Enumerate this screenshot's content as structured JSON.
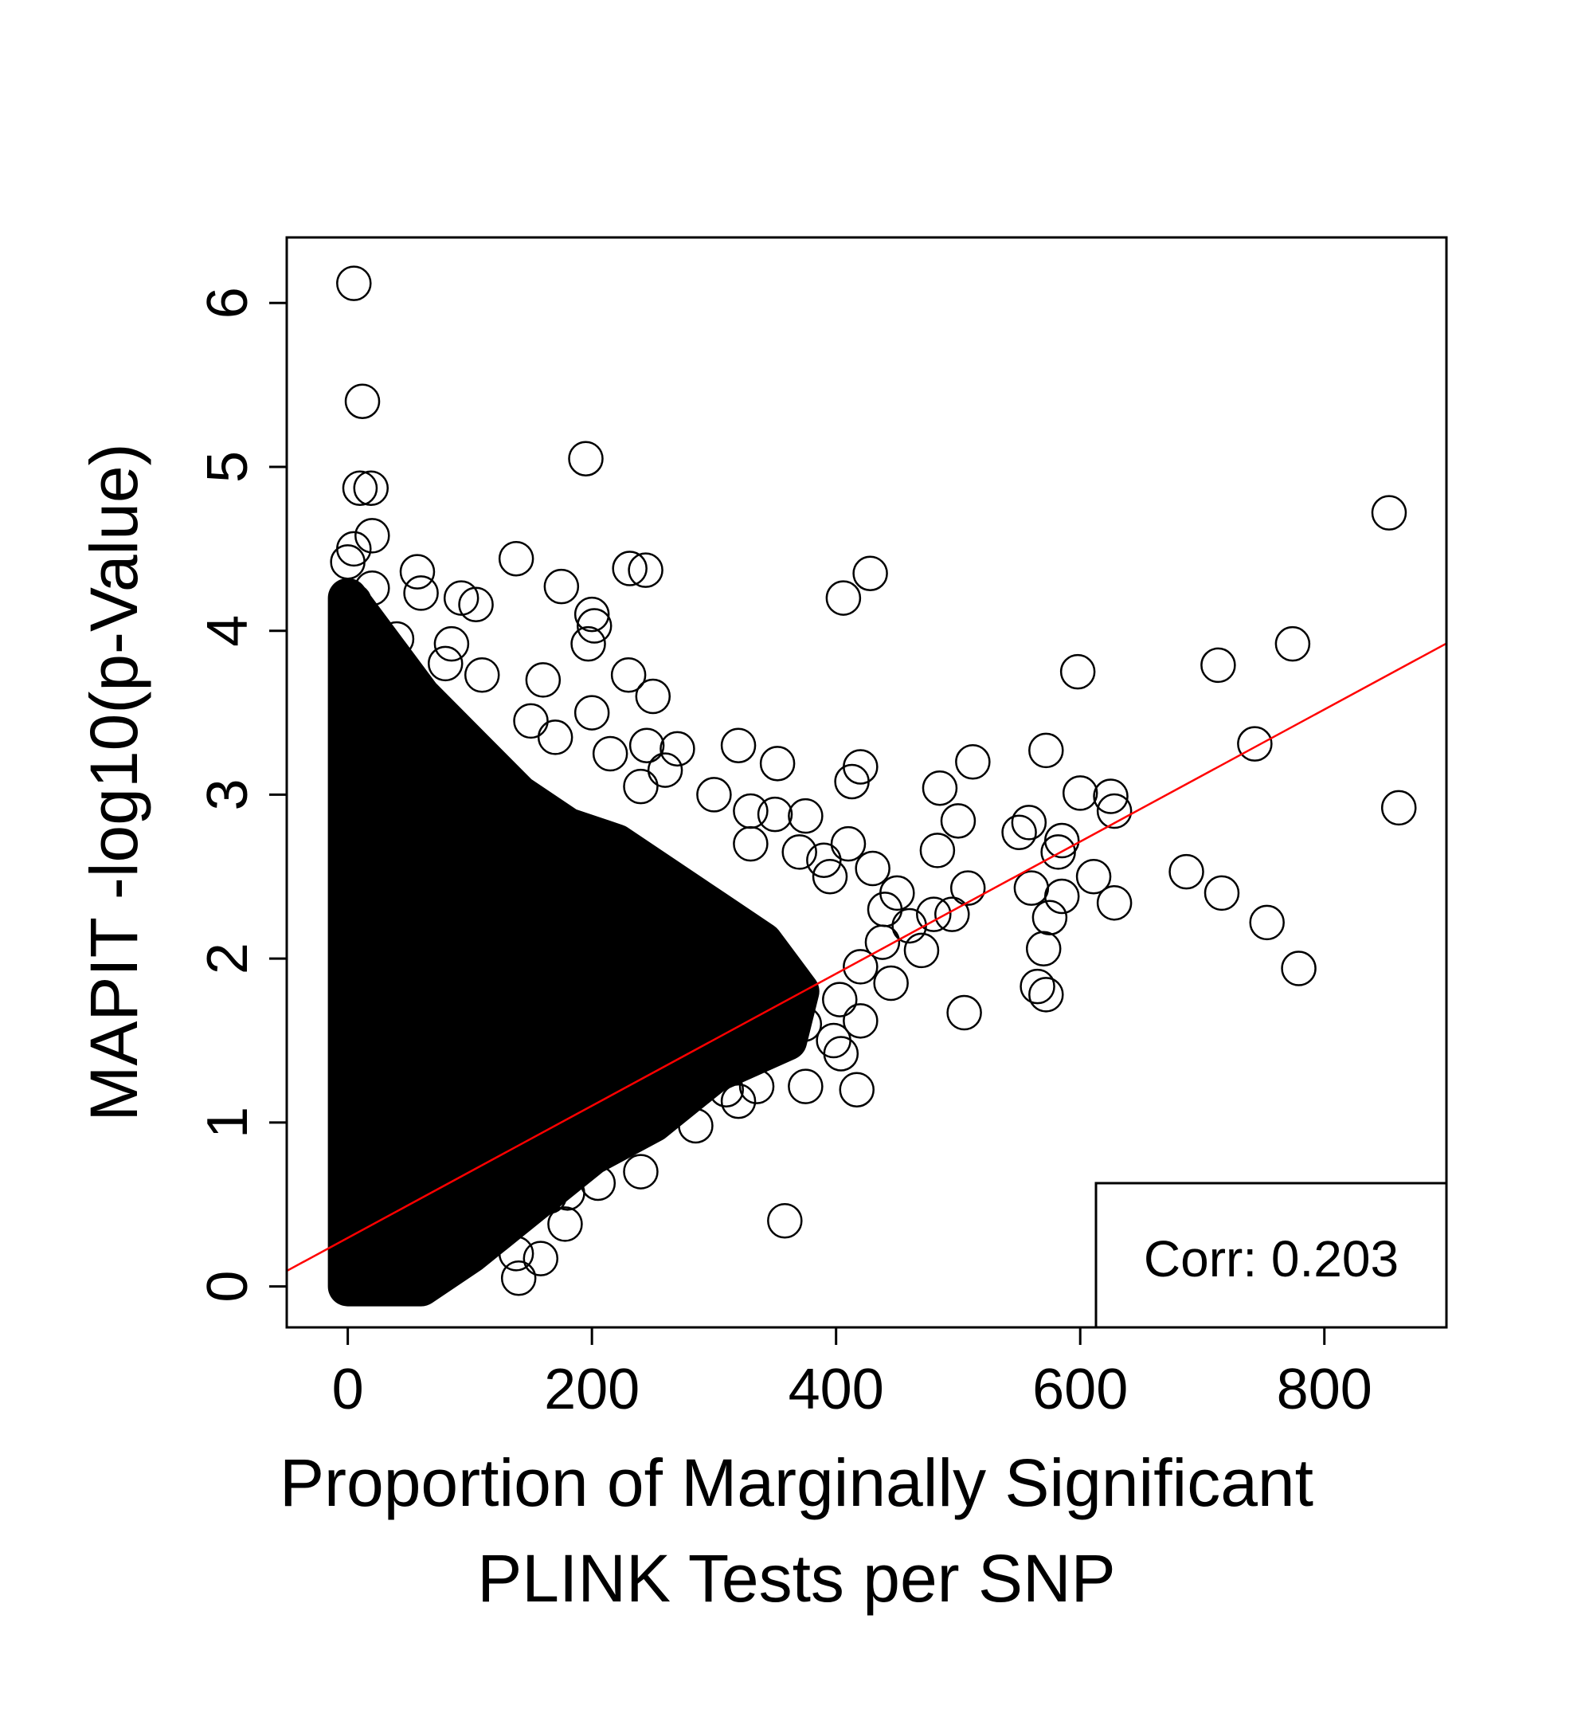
{
  "chart_data": {
    "type": "scatter",
    "title": "",
    "xlabel_lines": [
      "Proportion of Marginally Significant",
      "PLINK Tests per SNP"
    ],
    "ylabel": "MAPIT -log10(p-Value)",
    "xlim": [
      -50,
      900
    ],
    "ylim": [
      -0.25,
      6.4
    ],
    "x_ticks": [
      0,
      200,
      400,
      600,
      800
    ],
    "y_ticks": [
      0,
      1,
      2,
      3,
      4,
      5,
      6
    ],
    "grid": false,
    "legend_position": "bottom-right",
    "legend_text": "Corr: 0.203",
    "point_color": "#000000",
    "dense_core": {
      "description_values": [
        [
          0,
          0
        ],
        [
          0,
          4.2
        ],
        [
          10,
          4.1
        ],
        [
          30,
          3.9
        ],
        [
          60,
          3.6
        ],
        [
          100,
          3.3
        ],
        [
          140,
          3.0
        ],
        [
          180,
          2.8
        ],
        [
          220,
          2.7
        ],
        [
          260,
          2.5
        ],
        [
          300,
          2.3
        ],
        [
          340,
          2.1
        ],
        [
          370,
          1.8
        ],
        [
          360,
          1.5
        ],
        [
          300,
          1.3
        ],
        [
          250,
          1.0
        ],
        [
          200,
          0.8
        ],
        [
          150,
          0.5
        ],
        [
          100,
          0.2
        ],
        [
          60,
          0
        ],
        [
          0,
          0
        ]
      ]
    },
    "points": [
      {
        "x": 5,
        "y": 6.12
      },
      {
        "x": 12,
        "y": 5.4
      },
      {
        "x": 195,
        "y": 5.05
      },
      {
        "x": 10,
        "y": 4.87
      },
      {
        "x": 19,
        "y": 4.87
      },
      {
        "x": 20,
        "y": 4.58
      },
      {
        "x": 5,
        "y": 4.5
      },
      {
        "x": 0,
        "y": 4.42
      },
      {
        "x": 138,
        "y": 4.44
      },
      {
        "x": 231,
        "y": 4.38
      },
      {
        "x": 244,
        "y": 4.37
      },
      {
        "x": 57,
        "y": 4.36
      },
      {
        "x": 60,
        "y": 4.23
      },
      {
        "x": 20,
        "y": 4.26
      },
      {
        "x": 93,
        "y": 4.2
      },
      {
        "x": 105,
        "y": 4.16
      },
      {
        "x": 175,
        "y": 4.27
      },
      {
        "x": 200,
        "y": 4.1
      },
      {
        "x": 202,
        "y": 4.03
      },
      {
        "x": 197,
        "y": 3.92
      },
      {
        "x": 5,
        "y": 4.18
      },
      {
        "x": 10,
        "y": 4.05
      },
      {
        "x": 40,
        "y": 3.95
      },
      {
        "x": 85,
        "y": 3.92
      },
      {
        "x": 80,
        "y": 3.8
      },
      {
        "x": 110,
        "y": 3.73
      },
      {
        "x": 160,
        "y": 3.7
      },
      {
        "x": 230,
        "y": 3.73
      },
      {
        "x": 250,
        "y": 3.6
      },
      {
        "x": 200,
        "y": 3.5
      },
      {
        "x": 150,
        "y": 3.45
      },
      {
        "x": 170,
        "y": 3.35
      },
      {
        "x": 215,
        "y": 3.25
      },
      {
        "x": 245,
        "y": 3.3
      },
      {
        "x": 270,
        "y": 3.28
      },
      {
        "x": 320,
        "y": 3.3
      },
      {
        "x": 352,
        "y": 3.19
      },
      {
        "x": 260,
        "y": 3.15
      },
      {
        "x": 240,
        "y": 3.05
      },
      {
        "x": 300,
        "y": 3.0
      },
      {
        "x": 330,
        "y": 2.9
      },
      {
        "x": 350,
        "y": 2.88
      },
      {
        "x": 375,
        "y": 2.87
      },
      {
        "x": 370,
        "y": 2.65
      },
      {
        "x": 330,
        "y": 2.7
      },
      {
        "x": 390,
        "y": 2.6
      },
      {
        "x": 395,
        "y": 2.5
      },
      {
        "x": 410,
        "y": 2.7
      },
      {
        "x": 420,
        "y": 3.17
      },
      {
        "x": 413,
        "y": 3.08
      },
      {
        "x": 406,
        "y": 4.2
      },
      {
        "x": 428,
        "y": 4.35
      },
      {
        "x": 430,
        "y": 2.55
      },
      {
        "x": 440,
        "y": 2.3
      },
      {
        "x": 450,
        "y": 2.4
      },
      {
        "x": 460,
        "y": 2.2
      },
      {
        "x": 470,
        "y": 2.05
      },
      {
        "x": 480,
        "y": 2.27
      },
      {
        "x": 438,
        "y": 2.1
      },
      {
        "x": 445,
        "y": 1.85
      },
      {
        "x": 420,
        "y": 1.95
      },
      {
        "x": 403,
        "y": 1.75
      },
      {
        "x": 398,
        "y": 1.5
      },
      {
        "x": 404,
        "y": 1.42
      },
      {
        "x": 420,
        "y": 1.62
      },
      {
        "x": 417,
        "y": 1.2
      },
      {
        "x": 375,
        "y": 1.22
      },
      {
        "x": 374,
        "y": 1.6
      },
      {
        "x": 355,
        "y": 1.5
      },
      {
        "x": 330,
        "y": 1.55
      },
      {
        "x": 310,
        "y": 1.2
      },
      {
        "x": 320,
        "y": 1.13
      },
      {
        "x": 335,
        "y": 1.22
      },
      {
        "x": 285,
        "y": 0.98
      },
      {
        "x": 240,
        "y": 0.7
      },
      {
        "x": 205,
        "y": 0.63
      },
      {
        "x": 180,
        "y": 0.57
      },
      {
        "x": 165,
        "y": 0.55
      },
      {
        "x": 178,
        "y": 0.38
      },
      {
        "x": 140,
        "y": 0.05
      },
      {
        "x": 158,
        "y": 0.17
      },
      {
        "x": 138,
        "y": 0.2
      },
      {
        "x": 358,
        "y": 0.4
      },
      {
        "x": 485,
        "y": 3.04
      },
      {
        "x": 500,
        "y": 2.84
      },
      {
        "x": 512,
        "y": 3.2
      },
      {
        "x": 508,
        "y": 2.43
      },
      {
        "x": 483,
        "y": 2.66
      },
      {
        "x": 495,
        "y": 2.27
      },
      {
        "x": 505,
        "y": 1.67
      },
      {
        "x": 550,
        "y": 2.77
      },
      {
        "x": 558,
        "y": 2.83
      },
      {
        "x": 572,
        "y": 3.27
      },
      {
        "x": 598,
        "y": 3.75
      },
      {
        "x": 585,
        "y": 2.72
      },
      {
        "x": 582,
        "y": 2.65
      },
      {
        "x": 600,
        "y": 3.01
      },
      {
        "x": 625,
        "y": 2.99
      },
      {
        "x": 628,
        "y": 2.9
      },
      {
        "x": 560,
        "y": 2.43
      },
      {
        "x": 585,
        "y": 2.38
      },
      {
        "x": 575,
        "y": 2.25
      },
      {
        "x": 611,
        "y": 2.5
      },
      {
        "x": 628,
        "y": 2.34
      },
      {
        "x": 570,
        "y": 2.06
      },
      {
        "x": 565,
        "y": 1.83
      },
      {
        "x": 572,
        "y": 1.78
      },
      {
        "x": 687,
        "y": 2.53
      },
      {
        "x": 713,
        "y": 3.79
      },
      {
        "x": 716,
        "y": 2.4
      },
      {
        "x": 743,
        "y": 3.31
      },
      {
        "x": 753,
        "y": 2.22
      },
      {
        "x": 774,
        "y": 3.92
      },
      {
        "x": 779,
        "y": 1.94
      },
      {
        "x": 853,
        "y": 4.72
      },
      {
        "x": 861,
        "y": 2.92
      }
    ],
    "fit_line": {
      "color": "#ff0000",
      "intercept": 0.296,
      "slope": 0.00403
    }
  }
}
